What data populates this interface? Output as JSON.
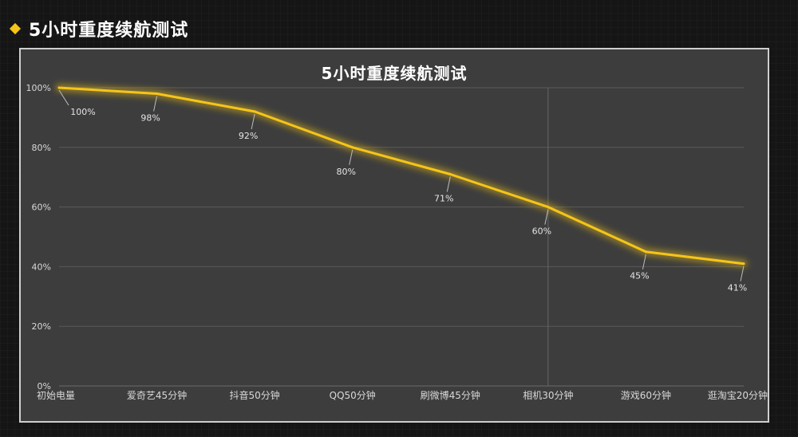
{
  "header": {
    "title": "5小时重度续航测试",
    "accent_color": "#f5c518"
  },
  "chart_data": {
    "type": "line",
    "title": "5小时重度续航测试",
    "categories": [
      "初始电量",
      "爱奇艺45分钟",
      "抖音50分钟",
      "QQ50分钟",
      "刷微博45分钟",
      "相机30分钟",
      "游戏60分钟",
      "逛淘宝20分钟"
    ],
    "values": [
      100,
      98,
      92,
      80,
      71,
      60,
      45,
      41
    ],
    "data_labels": [
      "100%",
      "98%",
      "92%",
      "80%",
      "71%",
      "60%",
      "45%",
      "41%"
    ],
    "y_ticks": [
      "0%",
      "20%",
      "40%",
      "60%",
      "80%",
      "100%"
    ],
    "ylim": [
      0,
      100
    ],
    "grid": true,
    "line_color": "#f5c518",
    "background_color": "#3d3d3d"
  }
}
